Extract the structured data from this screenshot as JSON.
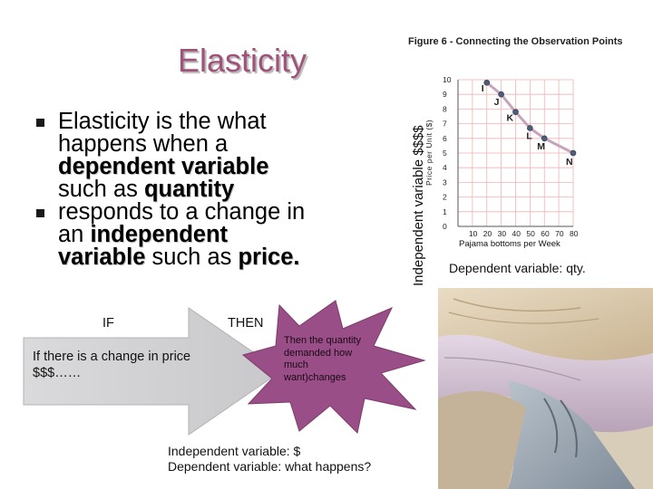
{
  "slide": {
    "title": "Elasticity",
    "bullets": [
      {
        "line1": "Elasticity is the what",
        "line2": "happens when a",
        "line3_bold": "dependent variable",
        "line4_a": "such as ",
        "line4_b": "quantity"
      },
      {
        "line1": "responds to a change in",
        "line2_a": "an ",
        "line2_b": "independent",
        "line3_a": "variable",
        "line3_b": " such as ",
        "line3_c": "price."
      }
    ],
    "if_label": "IF",
    "then_label": "THEN",
    "arrow_text": "If there is a change in price  $$$……",
    "burst_text": "Then the quantity demanded how much want)changes",
    "independent_note_line1": "Independent variable:  $",
    "independent_note_line2": "Dependent variable:  what happens?",
    "dependent_qty_label": "Dependent variable: qty.",
    "y_axis_big_label": "Independent variable  $$$$",
    "photo": "pajama-bottoms-photo",
    "colors": {
      "title": "#a0527a",
      "arrow_fill": "#d4d4d6",
      "burst_fill": "#9a4e88",
      "chart_line": "#c9a3b9",
      "chart_grid": "#f0b3b3"
    }
  },
  "chart_data": {
    "type": "line",
    "title": "Figure 6 - Connecting the Observation Points",
    "xlabel": "Pajama bottoms   per Week",
    "ylabel": "Price per Unit ($)",
    "x_ticks": [
      "10",
      "20",
      "30",
      "40",
      "50",
      "60",
      "70",
      "80"
    ],
    "y_ticks": [
      "0",
      "1",
      "2",
      "3",
      "4",
      "5",
      "6",
      "7",
      "8",
      "9",
      "10"
    ],
    "xlim": [
      0,
      80
    ],
    "ylim": [
      0,
      10
    ],
    "grid": true,
    "points": [
      {
        "label": "I",
        "x": 20,
        "y": 9.8
      },
      {
        "label": "J",
        "x": 30,
        "y": 9
      },
      {
        "label": "K",
        "x": 40,
        "y": 7.8
      },
      {
        "label": "L",
        "x": 50,
        "y": 6.7
      },
      {
        "label": "M",
        "x": 60,
        "y": 6
      },
      {
        "label": "N",
        "x": 80,
        "y": 5
      }
    ]
  }
}
